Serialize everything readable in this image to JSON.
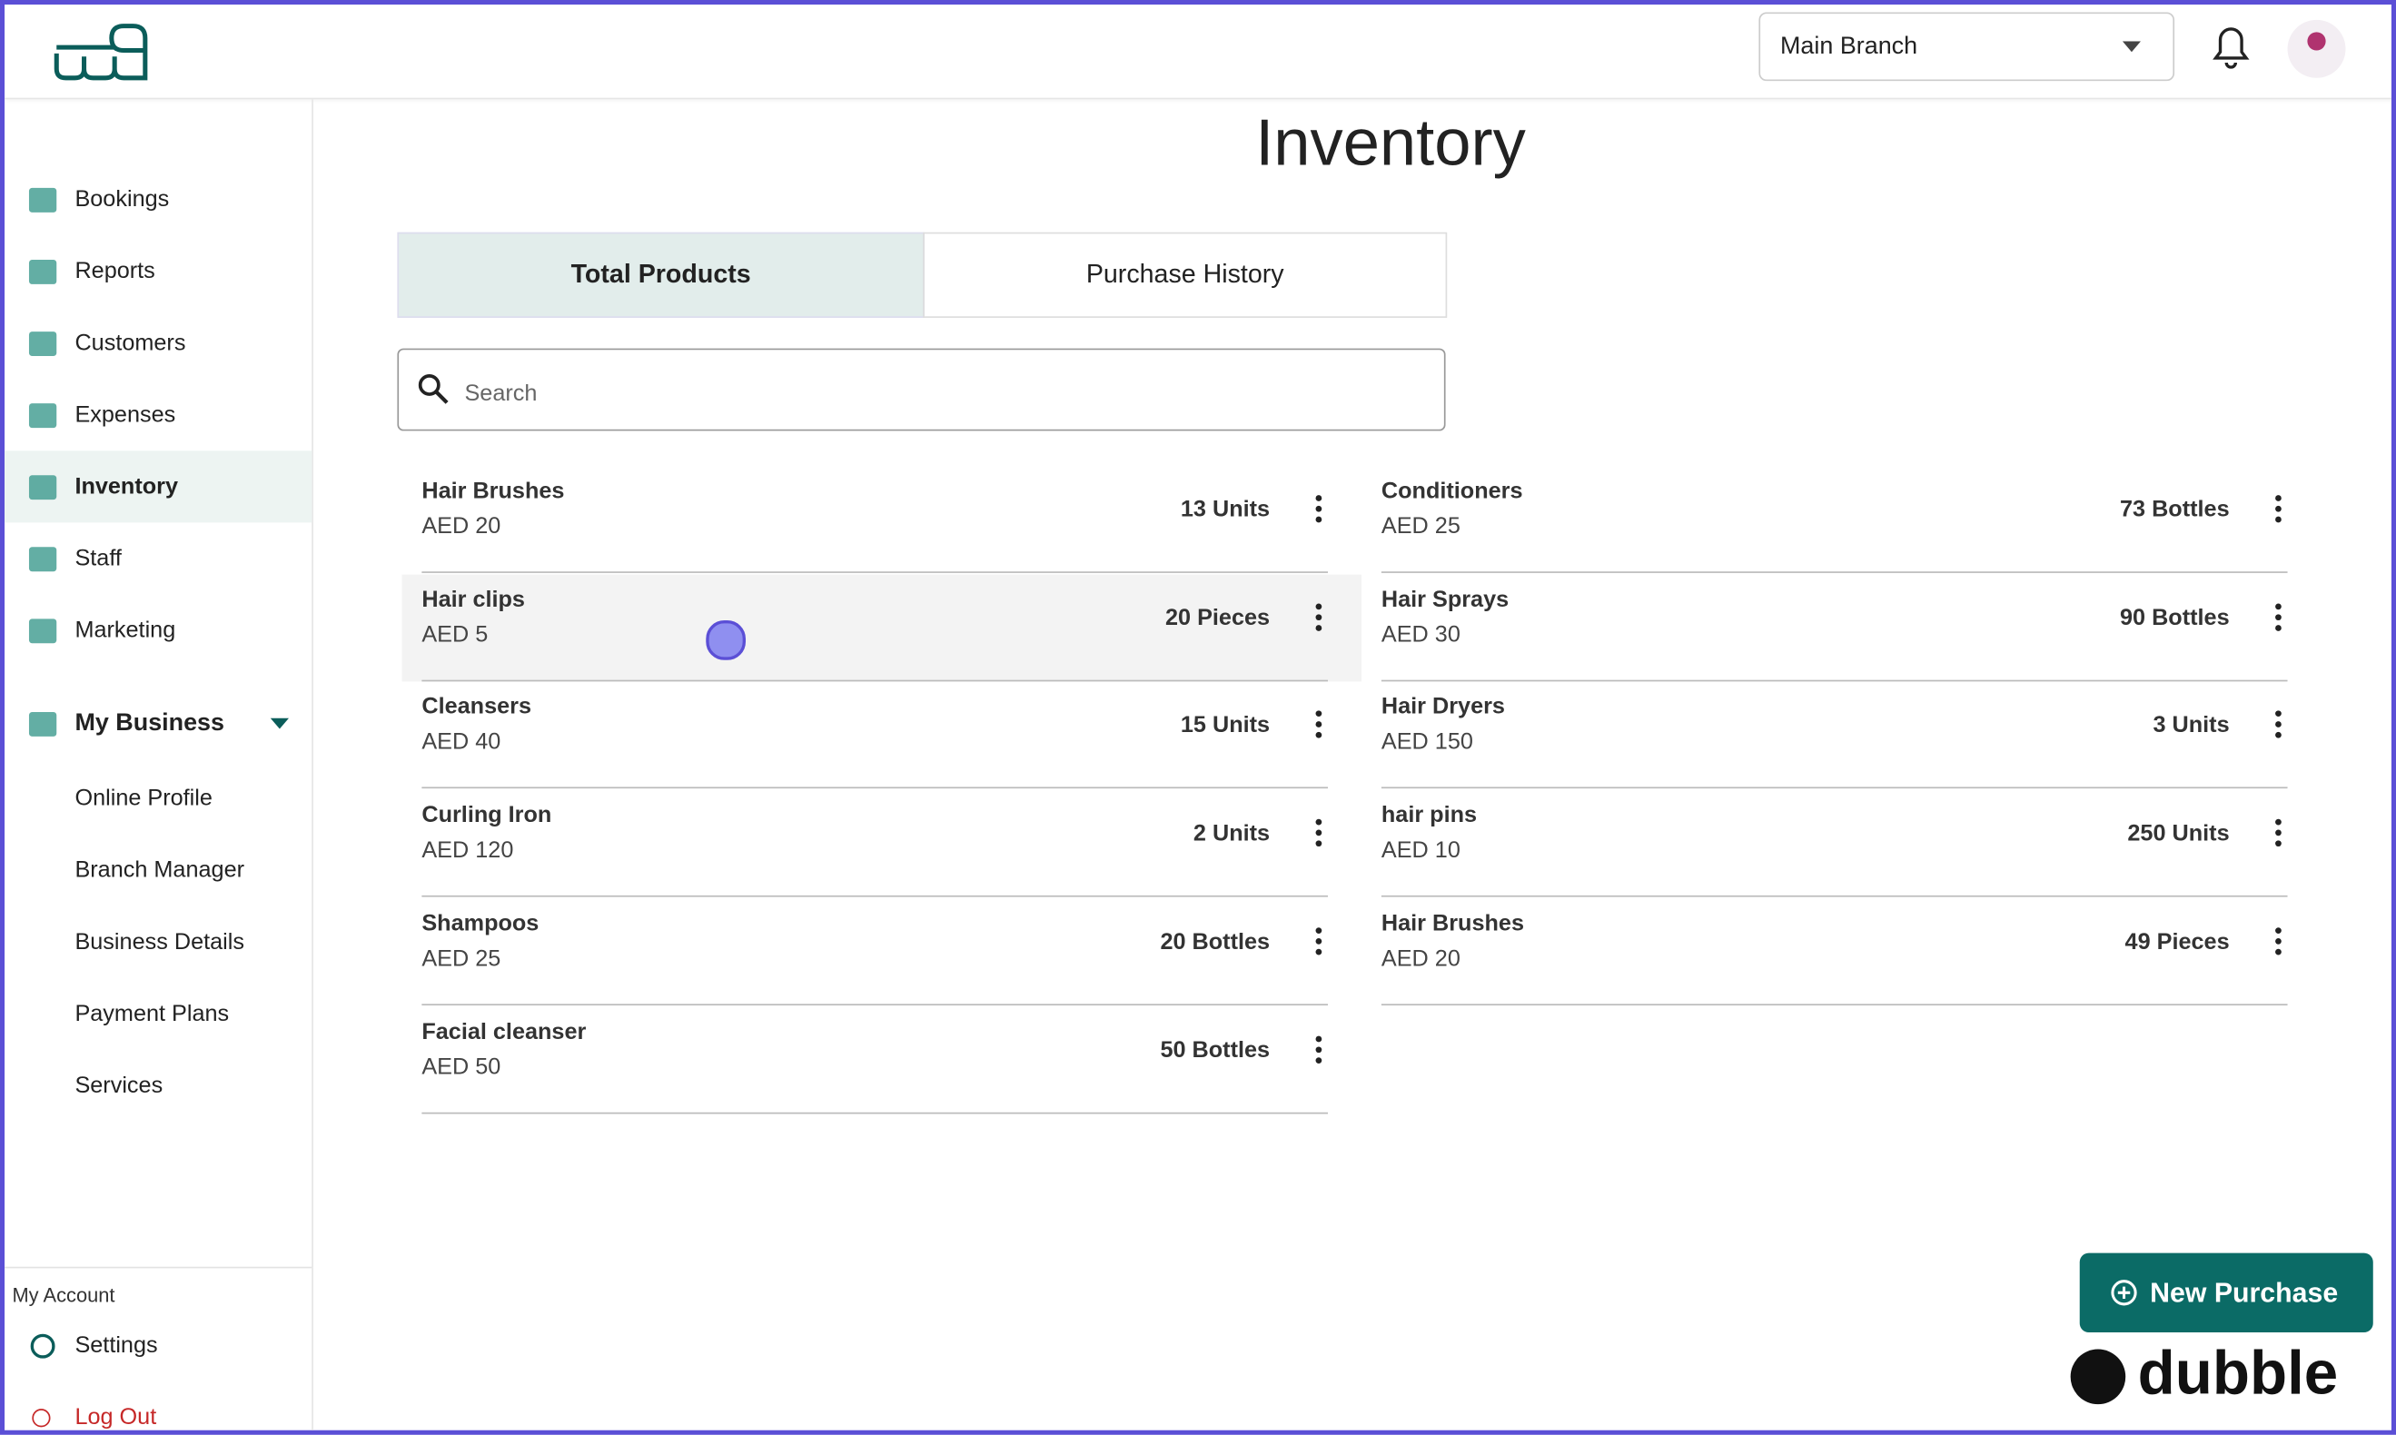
{
  "header": {
    "branch": "Main Branch"
  },
  "sidebar": {
    "nav": [
      "Bookings",
      "Reports",
      "Customers",
      "Expenses",
      "Inventory",
      "Staff",
      "Marketing"
    ],
    "business": "My Business",
    "business_items": [
      "Online Profile",
      "Branch Manager",
      "Business Details",
      "Payment Plans",
      "Services"
    ],
    "account_heading": "My Account",
    "settings": "Settings",
    "logout": "Log Out"
  },
  "main": {
    "title": "Inventory",
    "tabs": [
      "Total Products",
      "Purchase History"
    ],
    "search_placeholder": "Search",
    "products": [
      [
        {
          "name": "Hair Brushes",
          "price": "AED 20",
          "quantity": "13 Units"
        },
        {
          "name": "Hair clips",
          "price": "AED 5",
          "quantity": "20 Pieces"
        },
        {
          "name": "Cleansers",
          "price": "AED 40",
          "quantity": "15 Units"
        },
        {
          "name": "Curling Iron",
          "price": "AED 120",
          "quantity": "2 Units"
        },
        {
          "name": "Shampoos",
          "price": "AED 25",
          "quantity": "20 Bottles"
        },
        {
          "name": "Facial cleanser",
          "price": "AED 50",
          "quantity": "50 Bottles"
        }
      ],
      [
        {
          "name": "Conditioners",
          "price": "AED 25",
          "quantity": "73 Bottles"
        },
        {
          "name": "Hair Sprays",
          "price": "AED 30",
          "quantity": "90 Bottles"
        },
        {
          "name": "Hair Dryers",
          "price": "AED 150",
          "quantity": "3 Units"
        },
        {
          "name": "hair pins",
          "price": "AED 10",
          "quantity": "250 Units"
        },
        {
          "name": "Hair Brushes",
          "price": "AED 20",
          "quantity": "49 Pieces"
        }
      ]
    ],
    "new_purchase": "New Purchase"
  },
  "watermark": "dubble"
}
